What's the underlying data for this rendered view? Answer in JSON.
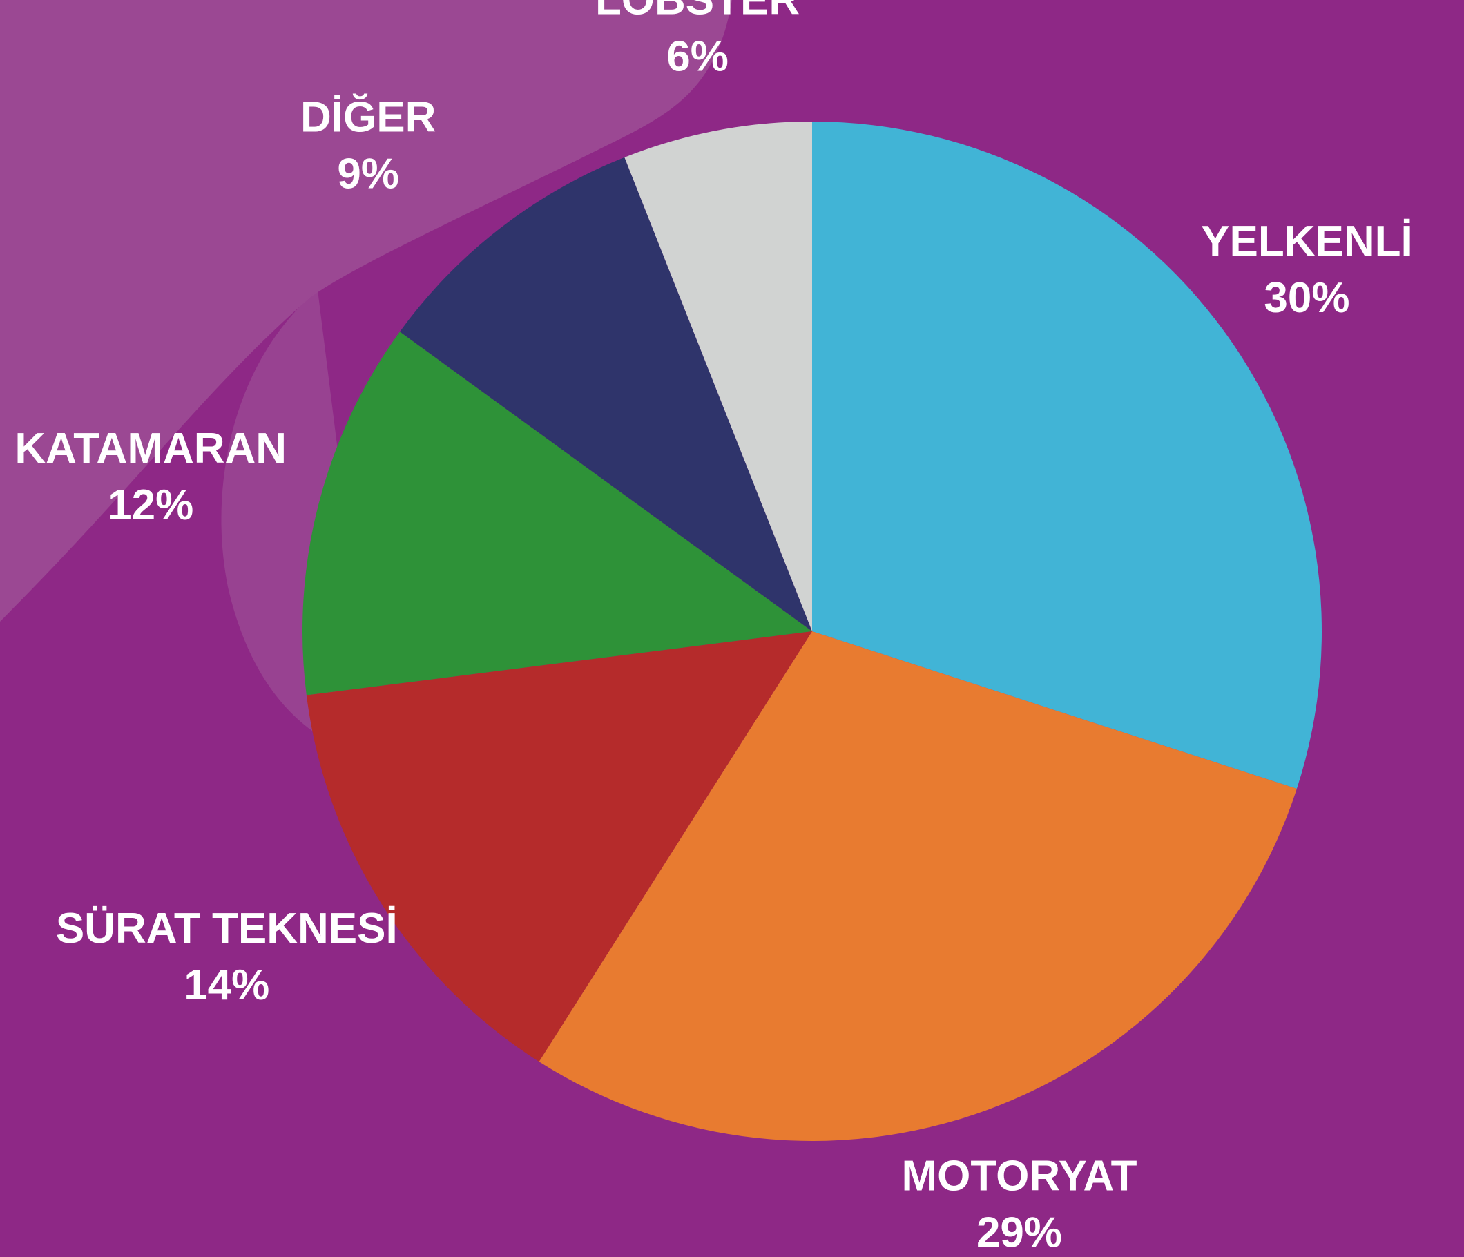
{
  "chart_data": {
    "type": "pie",
    "categories": [
      "YELKENLİ",
      "MOTORYAT",
      "SÜRAT TEKNESİ",
      "KATAMARAN",
      "DİĞER",
      "LOBSTER"
    ],
    "values": [
      30,
      29,
      14,
      12,
      9,
      6
    ],
    "value_labels": [
      "30%",
      "29%",
      "14%",
      "12%",
      "9%",
      "6%"
    ],
    "colors": [
      "#41b4d6",
      "#e87b30",
      "#b52b2b",
      "#2e9238",
      "#2f346b",
      "#d1d3d2"
    ]
  }
}
